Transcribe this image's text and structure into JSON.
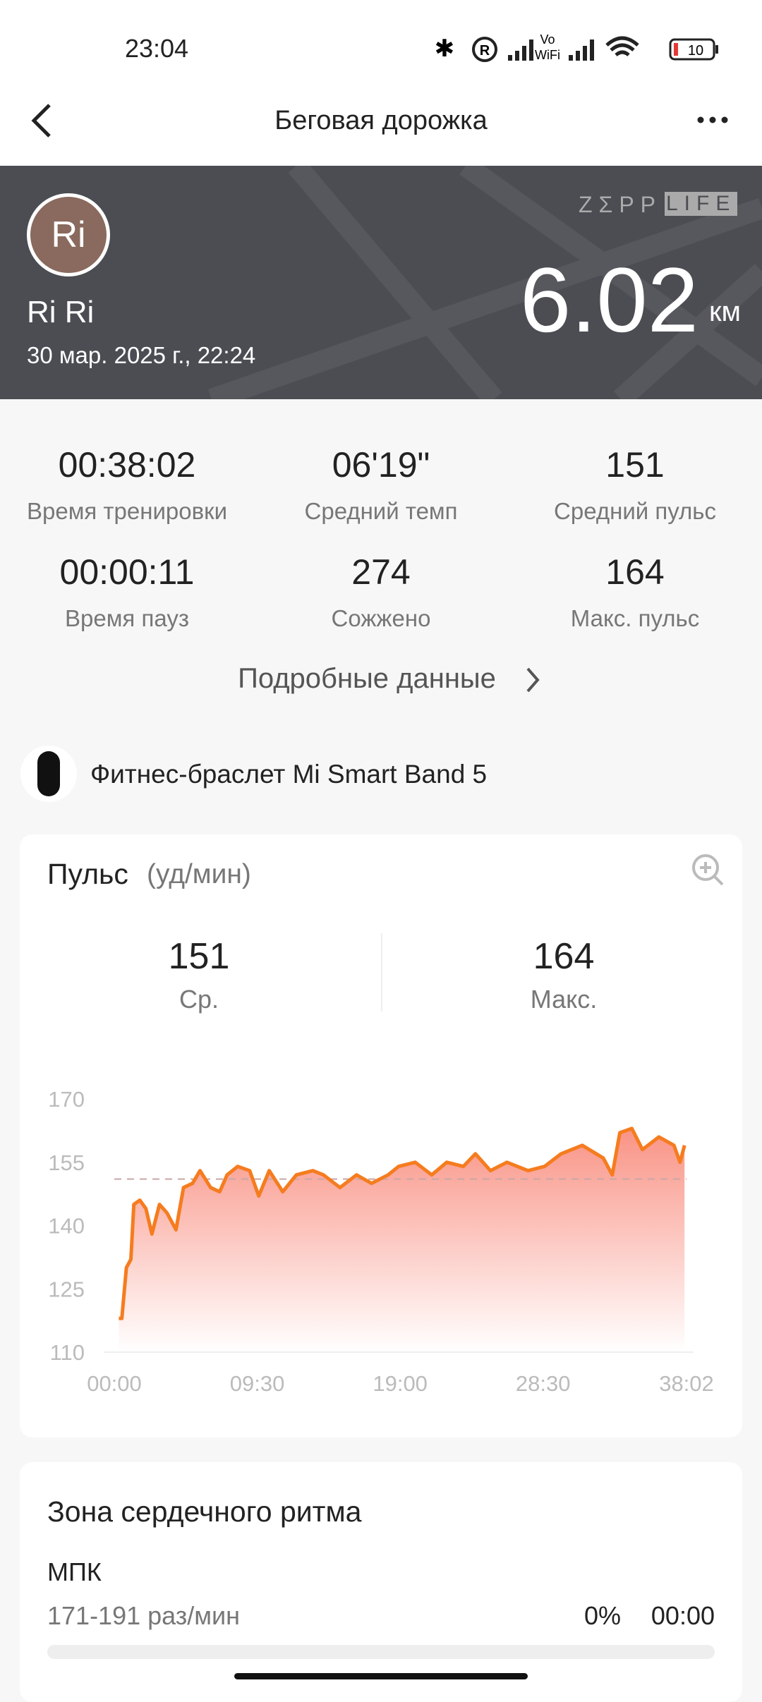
{
  "status_bar": {
    "time": "23:04",
    "vo": "Vo",
    "wifi": "WiFi",
    "battery": "10"
  },
  "header": {
    "title": "Беговая дорожка"
  },
  "banner": {
    "avatar": "Ri",
    "name": "Ri Ri",
    "date": "30 мар. 2025 г., 22:24",
    "distance": 6.02,
    "unit": "км",
    "logo": [
      "ZΣPP",
      "LIFE"
    ]
  },
  "stats": [
    {
      "value": "00:38:02",
      "label": "Время тренировки"
    },
    {
      "value": "06'19\"",
      "label": "Средний темп"
    },
    {
      "value": 151,
      "label": "Средний пульс"
    },
    {
      "value": "00:00:11",
      "label": "Время пауз"
    },
    {
      "value": 274,
      "label": "Сожжено"
    },
    {
      "value": 164,
      "label": "Макс. пульс"
    }
  ],
  "details_link": "Подробные данные",
  "device": "Фитнес-браслет Mi Smart Band 5",
  "heart_rate_summary": [
    {
      "value": 151,
      "label": "Ср."
    },
    {
      "value": 164,
      "label": "Макс."
    }
  ],
  "chart_data": {
    "type": "line",
    "title": "Пульс",
    "subtitle": "(уд/мин)",
    "x": [
      0.3,
      0.5,
      0.8,
      1.1,
      1.3,
      1.7,
      2.1,
      2.5,
      3,
      3.5,
      4.1,
      4.6,
      5.2,
      5.7,
      6.4,
      7,
      7.5,
      8.2,
      9,
      9.6,
      10.3,
      11.2,
      12.1,
      13.2,
      13.9,
      15,
      16.1,
      17.1,
      18.2,
      18.9,
      20,
      21.1,
      22.1,
      23.2,
      24,
      25,
      26.1,
      27.5,
      28.6,
      29.7,
      31.1,
      32.5,
      33.1,
      33.6,
      34.4,
      35.1,
      36.2,
      37.2,
      37.6,
      37.9
    ],
    "series": [
      {
        "color": "#f57c1f",
        "values": [
          118,
          118,
          130,
          132,
          145,
          146,
          144,
          138,
          145,
          143,
          139,
          149,
          150,
          153,
          149,
          148,
          152,
          154,
          153,
          147,
          153,
          148,
          152,
          153,
          152,
          149,
          152,
          150,
          152,
          154,
          155,
          152,
          155,
          154,
          157,
          153,
          155,
          153,
          154,
          157,
          159,
          156,
          152,
          162,
          163,
          158,
          161,
          159,
          155,
          159
        ]
      }
    ],
    "xlim": [
      0,
      38.0333
    ],
    "xticks": [
      {
        "value": 0,
        "label": "00:00"
      },
      {
        "value": 9.5,
        "label": "09:30"
      },
      {
        "value": 19,
        "label": "19:00"
      },
      {
        "value": 28.5,
        "label": "28:30"
      },
      {
        "value": 38.0333,
        "label": "38:02"
      }
    ],
    "ylim": [
      110,
      170
    ],
    "yticks": [
      110,
      125,
      140,
      155,
      170
    ],
    "grid": false
  },
  "zone_card": {
    "title": "Зона сердечного ритма",
    "zone": "МПК",
    "range": "171-191 раз/мин",
    "percent": "0%",
    "time": "00:00"
  }
}
